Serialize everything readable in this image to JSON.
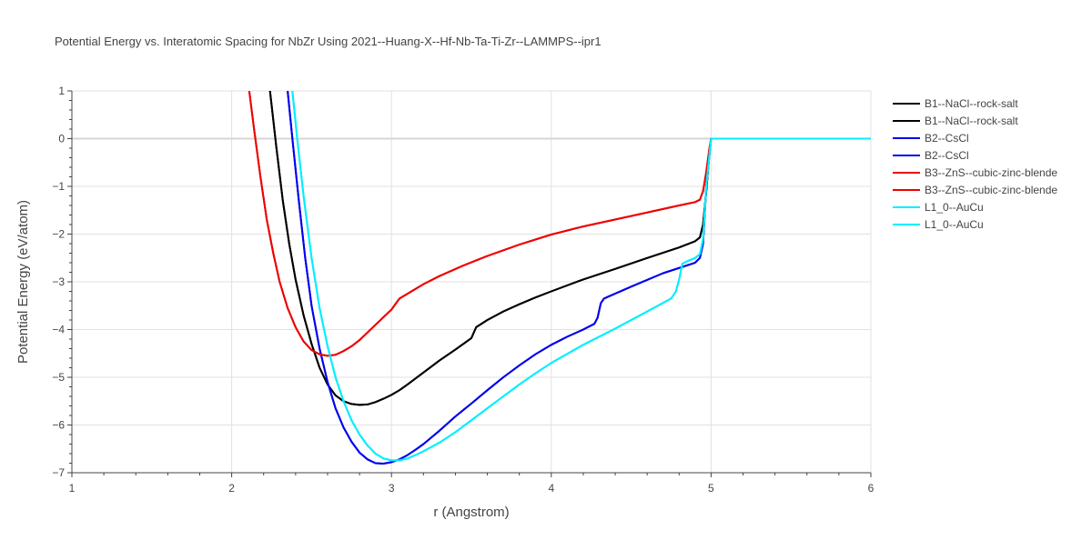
{
  "chart_data": {
    "type": "line",
    "title": "Potential Energy vs. Interatomic Spacing for NbZr Using 2021--Huang-X--Hf-Nb-Ta-Ti-Zr--LAMMPS--ipr1",
    "xlabel": "r (Angstrom)",
    "ylabel": "Potential Energy (eV/atom)",
    "xlim": [
      1,
      6
    ],
    "ylim": [
      -7,
      1
    ],
    "xticks": [
      1,
      2,
      3,
      4,
      5,
      6
    ],
    "yticks": [
      1,
      0,
      -1,
      -2,
      -3,
      -4,
      -5,
      -6,
      -7
    ],
    "ytick_labels": [
      "1",
      "0",
      "−1",
      "−2",
      "−3",
      "−4",
      "−5",
      "−6",
      "−7"
    ],
    "grid": true,
    "legend_position": "top-right",
    "series": [
      {
        "name": "B1--NaCl--rock-salt",
        "color": "#000000",
        "x": [
          2.24,
          2.28,
          2.32,
          2.36,
          2.4,
          2.45,
          2.5,
          2.55,
          2.6,
          2.65,
          2.7,
          2.75,
          2.8,
          2.85,
          2.9,
          2.95,
          3.0,
          3.05,
          3.1,
          3.2,
          3.3,
          3.4,
          3.5,
          3.53,
          3.6,
          3.7,
          3.8,
          3.9,
          4.0,
          4.2,
          4.4,
          4.6,
          4.8,
          4.9,
          4.93,
          4.95,
          4.97,
          4.99,
          5.0,
          5.5,
          6.0
        ],
        "y": [
          1.0,
          -0.2,
          -1.3,
          -2.2,
          -2.95,
          -3.7,
          -4.3,
          -4.8,
          -5.15,
          -5.38,
          -5.5,
          -5.56,
          -5.58,
          -5.57,
          -5.52,
          -5.45,
          -5.37,
          -5.27,
          -5.15,
          -4.9,
          -4.65,
          -4.42,
          -4.18,
          -3.95,
          -3.8,
          -3.62,
          -3.47,
          -3.33,
          -3.2,
          -2.95,
          -2.73,
          -2.5,
          -2.28,
          -2.15,
          -2.07,
          -1.8,
          -1.1,
          -0.3,
          0.0,
          0.0,
          0.0
        ]
      },
      {
        "name": "B1--NaCl--rock-salt",
        "color": "#000000",
        "x": [
          2.24,
          2.28,
          2.32,
          2.36,
          2.4,
          2.45,
          2.5,
          2.55,
          2.6,
          2.65,
          2.7,
          2.75,
          2.8,
          2.85,
          2.9,
          2.95,
          3.0,
          3.05,
          3.1,
          3.2,
          3.3,
          3.4,
          3.5,
          3.53,
          3.6,
          3.7,
          3.8,
          3.9,
          4.0,
          4.2,
          4.4,
          4.6,
          4.8,
          4.9,
          4.93,
          4.95,
          4.97,
          4.99,
          5.0,
          5.5,
          6.0
        ],
        "y": [
          1.0,
          -0.2,
          -1.3,
          -2.2,
          -2.95,
          -3.7,
          -4.3,
          -4.8,
          -5.15,
          -5.38,
          -5.5,
          -5.56,
          -5.58,
          -5.57,
          -5.52,
          -5.45,
          -5.37,
          -5.27,
          -5.15,
          -4.9,
          -4.65,
          -4.42,
          -4.18,
          -3.95,
          -3.8,
          -3.62,
          -3.47,
          -3.33,
          -3.2,
          -2.95,
          -2.73,
          -2.5,
          -2.28,
          -2.15,
          -2.07,
          -1.8,
          -1.1,
          -0.3,
          0.0,
          0.0,
          0.0
        ]
      },
      {
        "name": "B2--CsCl",
        "color": "#0000ee",
        "x": [
          2.35,
          2.38,
          2.42,
          2.46,
          2.5,
          2.55,
          2.6,
          2.65,
          2.7,
          2.75,
          2.8,
          2.85,
          2.9,
          2.95,
          3.0,
          3.05,
          3.1,
          3.15,
          3.2,
          3.3,
          3.4,
          3.5,
          3.6,
          3.7,
          3.8,
          3.9,
          4.0,
          4.1,
          4.2,
          4.27,
          4.29,
          4.31,
          4.33,
          4.35,
          4.5,
          4.7,
          4.9,
          4.93,
          4.95,
          4.97,
          5.0,
          5.5,
          6.0
        ],
        "y": [
          1.0,
          0.0,
          -1.3,
          -2.5,
          -3.5,
          -4.4,
          -5.1,
          -5.65,
          -6.05,
          -6.35,
          -6.58,
          -6.72,
          -6.8,
          -6.81,
          -6.78,
          -6.72,
          -6.63,
          -6.52,
          -6.4,
          -6.12,
          -5.82,
          -5.55,
          -5.27,
          -5.0,
          -4.75,
          -4.52,
          -4.32,
          -4.15,
          -4.0,
          -3.88,
          -3.75,
          -3.45,
          -3.35,
          -3.32,
          -3.1,
          -2.82,
          -2.6,
          -2.5,
          -2.2,
          -1.0,
          0.0,
          0.0,
          0.0
        ]
      },
      {
        "name": "B2--CsCl",
        "color": "#0000ee",
        "x": [
          2.35,
          2.38,
          2.42,
          2.46,
          2.5,
          2.55,
          2.6,
          2.65,
          2.7,
          2.75,
          2.8,
          2.85,
          2.9,
          2.95,
          3.0,
          3.05,
          3.1,
          3.15,
          3.2,
          3.3,
          3.4,
          3.5,
          3.6,
          3.7,
          3.8,
          3.9,
          4.0,
          4.1,
          4.2,
          4.27,
          4.29,
          4.31,
          4.33,
          4.35,
          4.5,
          4.7,
          4.9,
          4.93,
          4.95,
          4.97,
          5.0,
          5.5,
          6.0
        ],
        "y": [
          1.0,
          0.0,
          -1.3,
          -2.5,
          -3.5,
          -4.4,
          -5.1,
          -5.65,
          -6.05,
          -6.35,
          -6.58,
          -6.72,
          -6.8,
          -6.81,
          -6.78,
          -6.72,
          -6.63,
          -6.52,
          -6.4,
          -6.12,
          -5.82,
          -5.55,
          -5.27,
          -5.0,
          -4.75,
          -4.52,
          -4.32,
          -4.15,
          -4.0,
          -3.88,
          -3.75,
          -3.45,
          -3.35,
          -3.32,
          -3.1,
          -2.82,
          -2.6,
          -2.5,
          -2.2,
          -1.0,
          0.0,
          0.0,
          0.0
        ]
      },
      {
        "name": "B3--ZnS--cubic-zinc-blende",
        "color": "#ee0000",
        "x": [
          2.11,
          2.14,
          2.18,
          2.22,
          2.26,
          2.3,
          2.35,
          2.4,
          2.45,
          2.5,
          2.55,
          2.6,
          2.65,
          2.7,
          2.75,
          2.8,
          2.9,
          3.0,
          3.05,
          3.1,
          3.2,
          3.3,
          3.45,
          3.6,
          3.8,
          4.0,
          4.2,
          4.5,
          4.8,
          4.9,
          4.93,
          4.95,
          4.97,
          4.99,
          5.0,
          5.5,
          6.0
        ],
        "y": [
          1.0,
          0.2,
          -0.8,
          -1.7,
          -2.4,
          -3.0,
          -3.55,
          -3.95,
          -4.25,
          -4.43,
          -4.52,
          -4.55,
          -4.53,
          -4.45,
          -4.35,
          -4.22,
          -3.9,
          -3.58,
          -3.35,
          -3.25,
          -3.05,
          -2.88,
          -2.66,
          -2.46,
          -2.22,
          -2.01,
          -1.84,
          -1.62,
          -1.4,
          -1.33,
          -1.28,
          -1.1,
          -0.7,
          -0.2,
          0.0,
          0.0,
          0.0
        ]
      },
      {
        "name": "B3--ZnS--cubic-zinc-blende",
        "color": "#ee0000",
        "x": [
          2.11,
          2.14,
          2.18,
          2.22,
          2.26,
          2.3,
          2.35,
          2.4,
          2.45,
          2.5,
          2.55,
          2.6,
          2.65,
          2.7,
          2.75,
          2.8,
          2.9,
          3.0,
          3.05,
          3.1,
          3.2,
          3.3,
          3.45,
          3.6,
          3.8,
          4.0,
          4.2,
          4.5,
          4.8,
          4.9,
          4.93,
          4.95,
          4.97,
          4.99,
          5.0,
          5.5,
          6.0
        ],
        "y": [
          1.0,
          0.2,
          -0.8,
          -1.7,
          -2.4,
          -3.0,
          -3.55,
          -3.95,
          -4.25,
          -4.43,
          -4.52,
          -4.55,
          -4.53,
          -4.45,
          -4.35,
          -4.22,
          -3.9,
          -3.58,
          -3.35,
          -3.25,
          -3.05,
          -2.88,
          -2.66,
          -2.46,
          -2.22,
          -2.01,
          -1.84,
          -1.62,
          -1.4,
          -1.33,
          -1.28,
          -1.1,
          -0.7,
          -0.2,
          0.0,
          0.0,
          0.0
        ]
      },
      {
        "name": "L1_0--AuCu",
        "color": "#00eeff",
        "x": [
          2.38,
          2.41,
          2.45,
          2.5,
          2.55,
          2.6,
          2.65,
          2.7,
          2.75,
          2.8,
          2.85,
          2.9,
          2.95,
          3.0,
          3.05,
          3.1,
          3.15,
          3.2,
          3.3,
          3.4,
          3.5,
          3.6,
          3.7,
          3.8,
          3.9,
          4.0,
          4.2,
          4.4,
          4.6,
          4.75,
          4.78,
          4.8,
          4.82,
          4.85,
          4.9,
          4.93,
          4.95,
          4.97,
          5.0,
          5.5,
          6.0
        ],
        "y": [
          1.0,
          0.0,
          -1.2,
          -2.5,
          -3.55,
          -4.35,
          -5.0,
          -5.5,
          -5.9,
          -6.2,
          -6.43,
          -6.6,
          -6.7,
          -6.74,
          -6.74,
          -6.7,
          -6.63,
          -6.55,
          -6.37,
          -6.15,
          -5.9,
          -5.65,
          -5.4,
          -5.15,
          -4.92,
          -4.7,
          -4.32,
          -3.98,
          -3.62,
          -3.35,
          -3.2,
          -2.95,
          -2.62,
          -2.57,
          -2.5,
          -2.42,
          -2.1,
          -1.0,
          0.0,
          0.0,
          0.0
        ]
      },
      {
        "name": "L1_0--AuCu",
        "color": "#00eeff",
        "x": [
          2.38,
          2.41,
          2.45,
          2.5,
          2.55,
          2.6,
          2.65,
          2.7,
          2.75,
          2.8,
          2.85,
          2.9,
          2.95,
          3.0,
          3.05,
          3.1,
          3.15,
          3.2,
          3.3,
          3.4,
          3.5,
          3.6,
          3.7,
          3.8,
          3.9,
          4.0,
          4.2,
          4.4,
          4.6,
          4.75,
          4.78,
          4.8,
          4.82,
          4.85,
          4.9,
          4.93,
          4.95,
          4.97,
          5.0,
          5.5,
          6.0
        ],
        "y": [
          1.0,
          0.0,
          -1.2,
          -2.5,
          -3.55,
          -4.35,
          -5.0,
          -5.5,
          -5.9,
          -6.2,
          -6.43,
          -6.6,
          -6.7,
          -6.74,
          -6.74,
          -6.7,
          -6.63,
          -6.55,
          -6.37,
          -6.15,
          -5.9,
          -5.65,
          -5.4,
          -5.15,
          -4.92,
          -4.7,
          -4.32,
          -3.98,
          -3.62,
          -3.35,
          -3.2,
          -2.95,
          -2.62,
          -2.57,
          -2.5,
          -2.42,
          -2.1,
          -1.0,
          0.0,
          0.0,
          0.0
        ]
      }
    ]
  }
}
